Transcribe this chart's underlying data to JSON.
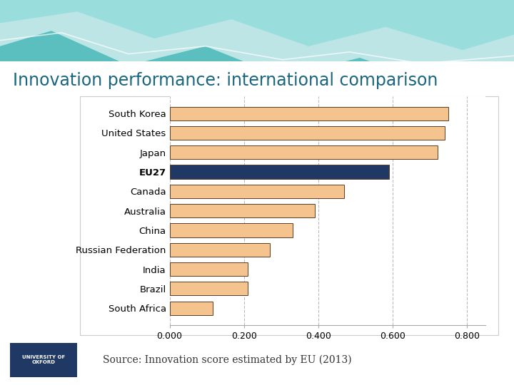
{
  "title": "Innovation performance: international comparison",
  "source_text": "Source: Innovation score estimated by EU (2013)",
  "categories": [
    "South Korea",
    "United States",
    "Japan",
    "EU27",
    "Canada",
    "Australia",
    "China",
    "Russian Federation",
    "India",
    "Brazil",
    "South Africa"
  ],
  "values": [
    0.75,
    0.74,
    0.72,
    0.59,
    0.47,
    0.39,
    0.33,
    0.27,
    0.21,
    0.21,
    0.115
  ],
  "bar_colors": [
    "#F5C48E",
    "#F5C48E",
    "#F5C48E",
    "#1F3864",
    "#F5C48E",
    "#F5C48E",
    "#F5C48E",
    "#F5C48E",
    "#F5C48E",
    "#F5C48E",
    "#F5C48E"
  ],
  "bar_edgecolor": "#5a3e28",
  "xlim": [
    0,
    0.85
  ],
  "xticks": [
    0.0,
    0.2,
    0.4,
    0.6,
    0.8
  ],
  "xtick_labels": [
    "0.000",
    "0.200",
    "0.400",
    "0.600",
    "0.800"
  ],
  "slide_bg": "#E8F4F8",
  "chart_bg": "#FFFFFF",
  "title_color": "#1a6680",
  "title_fontsize": 17,
  "grid_color": "#BBBBBB",
  "label_fontsize": 9.5,
  "tick_fontsize": 9
}
